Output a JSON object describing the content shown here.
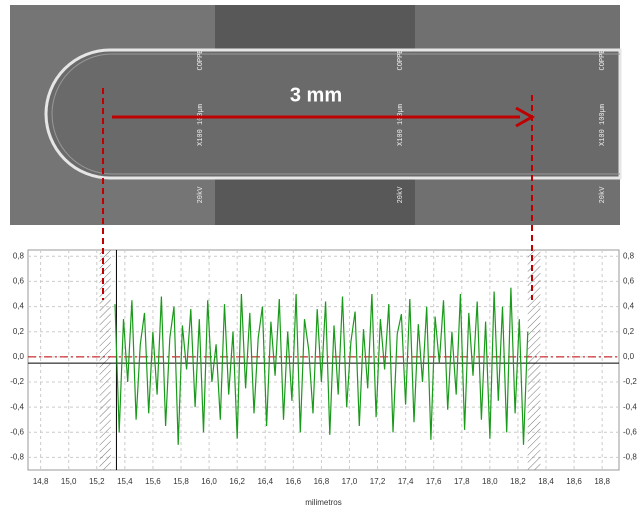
{
  "image": {
    "annotation": "3 mm",
    "labels": [
      "COPPE",
      "X100 100µm",
      "20kV"
    ]
  },
  "chart_data": {
    "type": "line",
    "x_label": "milimetros",
    "x": [
      15.33,
      15.36,
      15.39,
      15.42,
      15.45,
      15.48,
      15.51,
      15.54,
      15.57,
      15.6,
      15.63,
      15.66,
      15.69,
      15.72,
      15.75,
      15.78,
      15.81,
      15.84,
      15.87,
      15.9,
      15.93,
      15.96,
      15.99,
      16.02,
      16.05,
      16.08,
      16.11,
      16.14,
      16.17,
      16.2,
      16.23,
      16.26,
      16.29,
      16.32,
      16.35,
      16.38,
      16.41,
      16.44,
      16.47,
      16.5,
      16.53,
      16.56,
      16.59,
      16.62,
      16.65,
      16.68,
      16.71,
      16.74,
      16.77,
      16.8,
      16.83,
      16.86,
      16.89,
      16.92,
      16.95,
      16.98,
      17.01,
      17.04,
      17.07,
      17.1,
      17.13,
      17.16,
      17.19,
      17.22,
      17.25,
      17.28,
      17.31,
      17.34,
      17.37,
      17.4,
      17.43,
      17.46,
      17.49,
      17.52,
      17.55,
      17.58,
      17.61,
      17.64,
      17.67,
      17.7,
      17.73,
      17.76,
      17.79,
      17.82,
      17.85,
      17.88,
      17.91,
      17.94,
      17.97,
      18.0,
      18.03,
      18.06,
      18.09,
      18.12,
      18.15,
      18.18,
      18.21,
      18.24,
      18.27
    ],
    "series": [
      {
        "color": "#1a9a1a",
        "values": [
          0.42,
          -0.6,
          0.3,
          -0.2,
          0.45,
          -0.5,
          0.1,
          0.35,
          -0.45,
          0.2,
          -0.3,
          0.48,
          -0.55,
          0.15,
          0.4,
          -0.7,
          0.25,
          -0.1,
          0.38,
          -0.4,
          0.3,
          -0.6,
          0.45,
          -0.2,
          0.1,
          -0.5,
          0.42,
          -0.3,
          0.2,
          -0.65,
          0.5,
          -0.25,
          0.35,
          -0.45,
          0.15,
          0.4,
          -0.55,
          0.28,
          -0.15,
          0.46,
          -0.5,
          0.2,
          -0.35,
          0.5,
          -0.6,
          0.3,
          0.05,
          -0.45,
          0.38,
          -0.2,
          0.44,
          -0.62,
          0.25,
          -0.3,
          0.48,
          -0.4,
          0.12,
          0.36,
          -0.55,
          0.22,
          -0.25,
          0.5,
          -0.48,
          0.3,
          -0.1,
          0.42,
          -0.6,
          0.18,
          0.34,
          -0.38,
          0.46,
          -0.52,
          0.26,
          -0.2,
          0.4,
          -0.66,
          0.32,
          -0.05,
          0.45,
          -0.42,
          0.2,
          -0.3,
          0.5,
          -0.58,
          0.35,
          -0.15,
          0.44,
          -0.5,
          0.28,
          -0.65,
          0.52,
          -0.35,
          0.4,
          -0.6,
          0.55,
          -0.45,
          0.3,
          -0.7,
          0.2
        ]
      }
    ],
    "xlim": [
      14.71,
      18.92
    ],
    "ylim": [
      -0.9,
      0.85
    ],
    "xticks": [
      {
        "value": 14.8,
        "label": "14,8"
      },
      {
        "value": 15.0,
        "label": "15,0"
      },
      {
        "value": 15.2,
        "label": "15,2"
      },
      {
        "value": 15.4,
        "label": "15,4"
      },
      {
        "value": 15.6,
        "label": "15,6"
      },
      {
        "value": 15.8,
        "label": "15,8"
      },
      {
        "value": 16.0,
        "label": "16,0"
      },
      {
        "value": 16.2,
        "label": "16,2"
      },
      {
        "value": 16.4,
        "label": "16,4"
      },
      {
        "value": 16.6,
        "label": "16,6"
      },
      {
        "value": 16.8,
        "label": "16,8"
      },
      {
        "value": 17.0,
        "label": "17,0"
      },
      {
        "value": 17.2,
        "label": "17,2"
      },
      {
        "value": 17.4,
        "label": "17,4"
      },
      {
        "value": 17.6,
        "label": "17,6"
      },
      {
        "value": 17.8,
        "label": "17,8"
      },
      {
        "value": 18.0,
        "label": "18,0"
      },
      {
        "value": 18.2,
        "label": "18,2"
      },
      {
        "value": 18.4,
        "label": "18,4"
      },
      {
        "value": 18.6,
        "label": "18,6"
      },
      {
        "value": 18.8,
        "label": "18,8"
      }
    ],
    "yticks": [
      {
        "value": 0.8,
        "label": "0,8"
      },
      {
        "value": 0.6,
        "label": "0,6"
      },
      {
        "value": 0.4,
        "label": "0,4"
      },
      {
        "value": 0.2,
        "label": "0,2"
      },
      {
        "value": 0.0,
        "label": "0,0"
      },
      {
        "value": -0.2,
        "label": "-0,2"
      },
      {
        "value": -0.4,
        "label": "-0,4"
      },
      {
        "value": -0.6,
        "label": "-0,6"
      },
      {
        "value": -0.8,
        "label": "-0,8"
      }
    ],
    "grid": true,
    "reference_y": [
      0.0,
      -0.05
    ],
    "reference_x": 15.34,
    "hatched": [
      [
        15.22,
        15.3
      ],
      [
        18.27,
        18.36
      ]
    ]
  }
}
